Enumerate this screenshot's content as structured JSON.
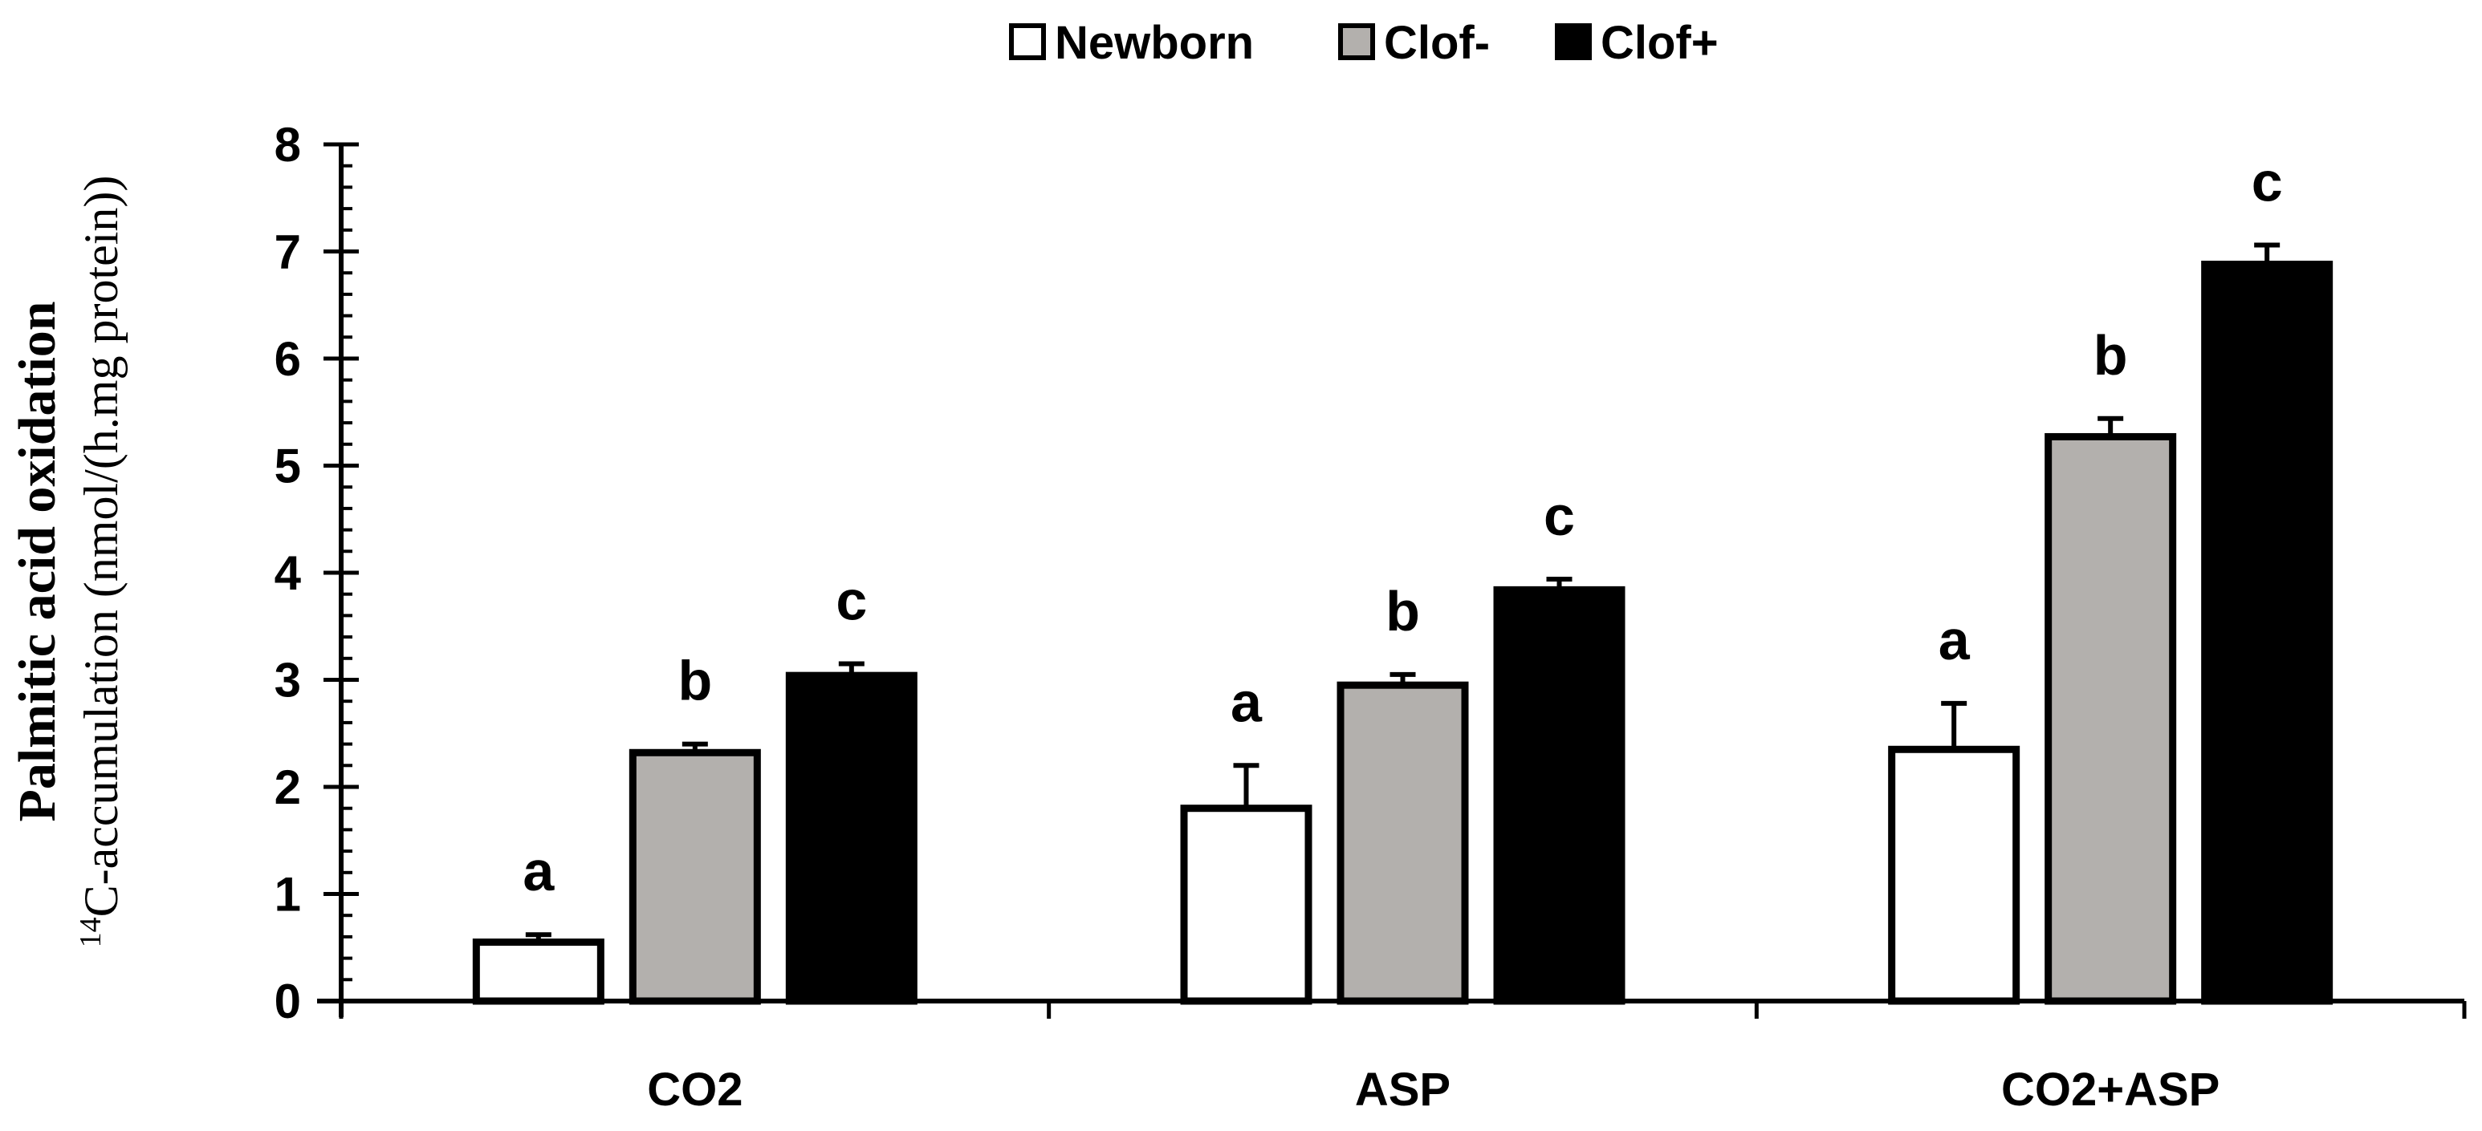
{
  "chart_data": {
    "type": "bar",
    "title": "",
    "ylabel_main": "Palmitic acid oxidation",
    "ylabel_sup": "14",
    "ylabel_sub": "C-accumulation (nmol/(h.mg protein))",
    "xlabel": "",
    "ylim": [
      0,
      8
    ],
    "yticks": [
      "0",
      "1",
      "2",
      "3",
      "4",
      "5",
      "6",
      "7",
      "8"
    ],
    "legend_position": "top-center",
    "categories": [
      "CO2",
      "ASP",
      "CO2+ASP"
    ],
    "series": [
      {
        "name": "Newborn",
        "color": "#ffffff",
        "values": [
          0.55,
          1.8,
          2.35
        ],
        "errors": [
          0.07,
          0.4,
          0.43
        ],
        "significance": [
          "a",
          "a",
          "a"
        ]
      },
      {
        "name": "Clof-",
        "color": "#b3b0ad",
        "values": [
          2.32,
          2.95,
          5.27
        ],
        "errors": [
          0.08,
          0.1,
          0.17
        ],
        "significance": [
          "b",
          "b",
          "b"
        ]
      },
      {
        "name": "Clof+",
        "color": "#000000",
        "values": [
          3.04,
          3.84,
          6.88
        ],
        "errors": [
          0.11,
          0.1,
          0.18
        ],
        "significance": [
          "c",
          "c",
          "c"
        ]
      }
    ]
  }
}
